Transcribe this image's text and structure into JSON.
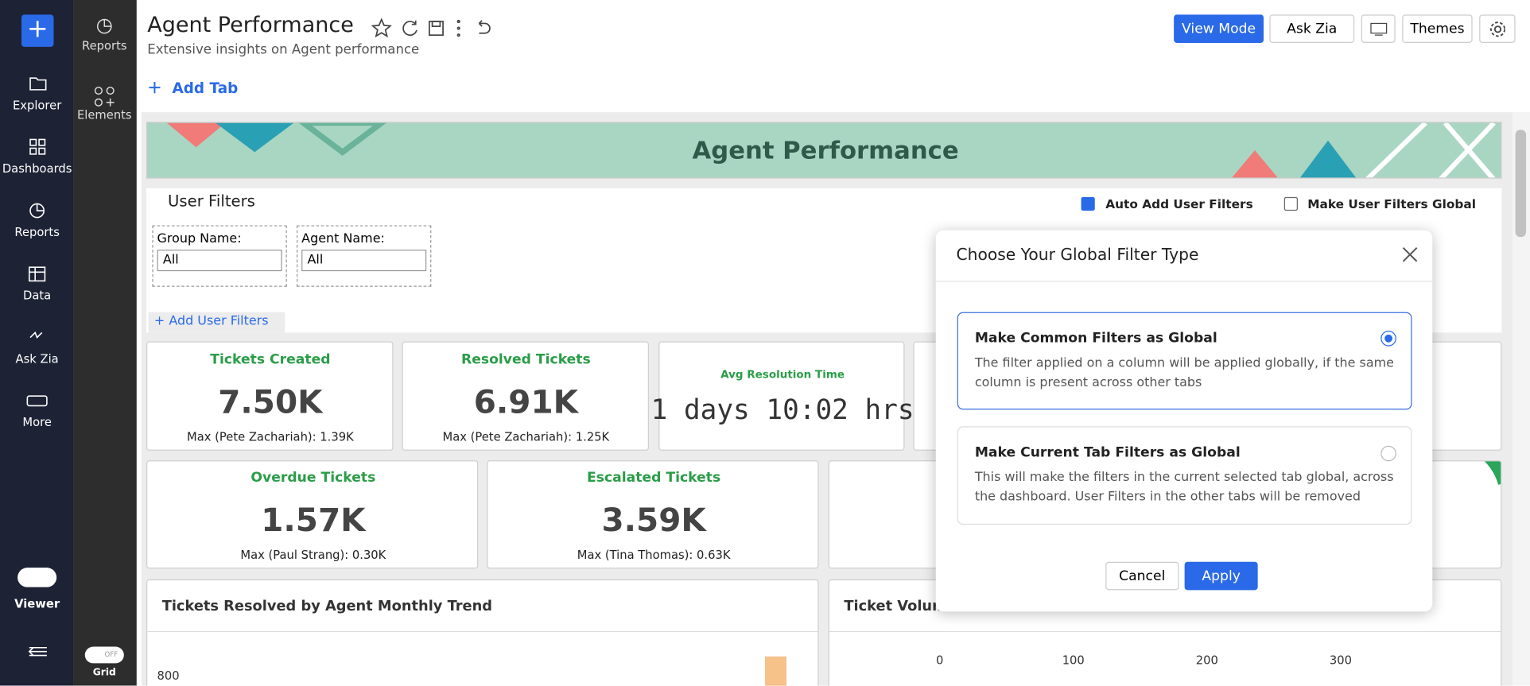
{
  "sidebar": {
    "items": [
      "Explorer",
      "Dashboards",
      "Reports",
      "Data",
      "Ask Zia",
      "More"
    ],
    "viewer": "Viewer"
  },
  "panel": {
    "items": [
      "Reports",
      "Elements"
    ],
    "grid_toggle": "OFF",
    "grid": "Grid"
  },
  "header": {
    "title": "Agent Performance",
    "subtitle": "Extensive insights on Agent performance",
    "add_tab": "Add Tab",
    "buttons": [
      "View Mode",
      "Ask Zia",
      "Themes"
    ]
  },
  "dashboard": {
    "banner": "Agent Performance",
    "user_filters": {
      "title": "User Filters",
      "auto_add": "Auto Add User Filters",
      "make_global": "Make User Filters Global",
      "filters": [
        {
          "label": "Group Name:",
          "value": "All"
        },
        {
          "label": "Agent Name:",
          "value": "All"
        }
      ],
      "add": "Add User Filters"
    },
    "kpis": [
      {
        "title": "Tickets Created",
        "value": "7.50K",
        "max": "Max (Pete Zachariah): 1.39K"
      },
      {
        "title": "Resolved Tickets",
        "value": "6.91K",
        "max": "Max (Pete Zachariah): 1.25K"
      },
      {
        "title": "Avg Resolution Time",
        "value": "1 days 10:02 hrs"
      },
      {
        "title": "Overdue Tickets",
        "value": "1.57K",
        "max": "Max (Paul Strang): 0.30K"
      },
      {
        "title": "Escalated Tickets",
        "value": "3.59K",
        "max": "Max (Tina Thomas): 0.63K"
      }
    ],
    "charts": [
      {
        "title": "Tickets Resolved by Agent Monthly Trend",
        "axis": [
          "800"
        ]
      },
      {
        "title": "Ticket Volume",
        "axis": [
          "0",
          "100",
          "200",
          "300"
        ]
      }
    ]
  },
  "dialog": {
    "title": "Choose Your Global Filter Type",
    "options": [
      {
        "title": "Make Common Filters as Global",
        "description": "The filter applied on a column will be applied globally, if the same column is present across other tabs",
        "selected": true
      },
      {
        "title": "Make Current Tab Filters as Global",
        "description": "This will make the filters in the current selected tab global, across the dashboard. User Filters in the other tabs will be removed",
        "selected": false
      }
    ],
    "cancel": "Cancel",
    "apply": "Apply"
  }
}
